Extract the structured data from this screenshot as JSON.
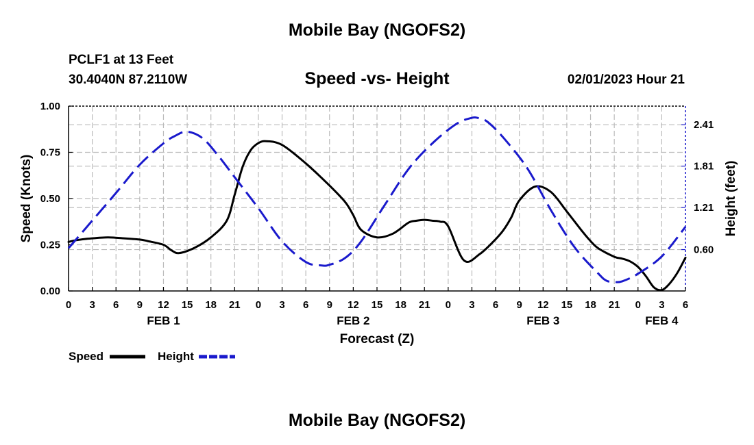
{
  "header": {
    "title": "Mobile Bay (NGOFS2)",
    "station": "PCLF1 at 13 Feet",
    "coordinates": "30.4040N  87.2110W",
    "chart_title": "Speed -vs- Height",
    "datetime": "02/01/2023 Hour 21"
  },
  "footer": {
    "title": "Mobile Bay (NGOFS2)"
  },
  "legend": {
    "items": [
      {
        "label": "Speed",
        "color": "#000000",
        "style": "solid"
      },
      {
        "label": "Height",
        "color": "#1a1acc",
        "style": "dashed"
      }
    ]
  },
  "chart_data": {
    "type": "line",
    "title": "Speed -vs- Height",
    "xlabel": "Forecast (Z)",
    "ylabel_left": "Speed (Knots)",
    "ylabel_right": "Height (feet)",
    "x_unit": "hours since FEB 1 00Z",
    "xlim": [
      0,
      78
    ],
    "ylim_left": [
      0,
      1.0
    ],
    "ylim_right": [
      0.0,
      2.68
    ],
    "x_ticks": [
      0,
      3,
      6,
      9,
      12,
      15,
      18,
      21,
      24,
      27,
      30,
      33,
      36,
      39,
      42,
      45,
      48,
      51,
      54,
      57,
      60,
      63,
      66,
      69,
      72,
      75,
      78
    ],
    "x_tick_labels": [
      "0",
      "3",
      "6",
      "9",
      "12",
      "15",
      "18",
      "21",
      "0",
      "3",
      "6",
      "9",
      "12",
      "15",
      "18",
      "21",
      "0",
      "3",
      "6",
      "9",
      "12",
      "15",
      "18",
      "21",
      "0",
      "3",
      "6"
    ],
    "y_left_ticks": [
      0.0,
      0.25,
      0.5,
      0.75,
      1.0
    ],
    "y_left_tick_labels": [
      "0.00",
      "0.25",
      "0.50",
      "0.75",
      "1.00"
    ],
    "y_right_ticks": [
      0.6,
      1.21,
      1.81,
      2.41
    ],
    "y_right_tick_labels": [
      "0.60",
      "1.21",
      "1.81",
      "2.41"
    ],
    "date_labels": [
      {
        "x": 12,
        "label": "FEB 1"
      },
      {
        "x": 36,
        "label": "FEB 2"
      },
      {
        "x": 60,
        "label": "FEB 3"
      },
      {
        "x": 75,
        "label": "FEB 4"
      }
    ],
    "grid": true,
    "series": [
      {
        "name": "Speed",
        "axis": "left",
        "color": "#000000",
        "dash": "solid",
        "x": [
          0,
          1,
          3,
          5,
          7,
          9,
          10,
          12,
          13,
          14,
          16,
          18,
          20,
          21,
          22,
          23,
          24,
          25,
          27,
          30,
          33,
          35,
          36,
          37,
          39,
          41,
          43,
          44,
          45,
          46,
          47,
          48,
          50,
          52,
          54,
          55,
          56,
          57,
          59,
          61,
          63,
          65,
          66,
          67,
          69,
          70,
          71,
          72,
          73,
          74,
          75,
          76,
          77,
          78
        ],
        "values": [
          0.265,
          0.275,
          0.285,
          0.29,
          0.285,
          0.278,
          0.27,
          0.25,
          0.22,
          0.205,
          0.235,
          0.29,
          0.38,
          0.52,
          0.67,
          0.76,
          0.8,
          0.81,
          0.79,
          0.69,
          0.57,
          0.48,
          0.41,
          0.33,
          0.29,
          0.31,
          0.37,
          0.38,
          0.385,
          0.38,
          0.375,
          0.35,
          0.165,
          0.2,
          0.28,
          0.33,
          0.4,
          0.49,
          0.565,
          0.535,
          0.43,
          0.32,
          0.27,
          0.23,
          0.185,
          0.175,
          0.16,
          0.13,
          0.08,
          0.02,
          0.005,
          0.04,
          0.1,
          0.18
        ]
      },
      {
        "name": "Height",
        "axis": "right",
        "color": "#1a1acc",
        "dash": "dashed",
        "x": [
          0,
          3,
          6,
          9,
          12,
          13.5,
          15,
          17,
          19,
          21,
          24,
          27,
          30,
          32,
          33,
          35,
          37,
          40,
          43,
          46,
          49,
          51,
          52,
          53,
          55,
          58,
          61,
          64,
          67,
          68,
          69,
          70,
          72,
          75,
          78
        ],
        "values": [
          0.62,
          1.02,
          1.42,
          1.83,
          2.14,
          2.25,
          2.31,
          2.21,
          1.95,
          1.65,
          1.2,
          0.72,
          0.42,
          0.37,
          0.38,
          0.48,
          0.72,
          1.25,
          1.77,
          2.14,
          2.42,
          2.51,
          2.5,
          2.45,
          2.22,
          1.78,
          1.17,
          0.63,
          0.25,
          0.15,
          0.13,
          0.14,
          0.25,
          0.5,
          0.93
        ]
      }
    ]
  }
}
